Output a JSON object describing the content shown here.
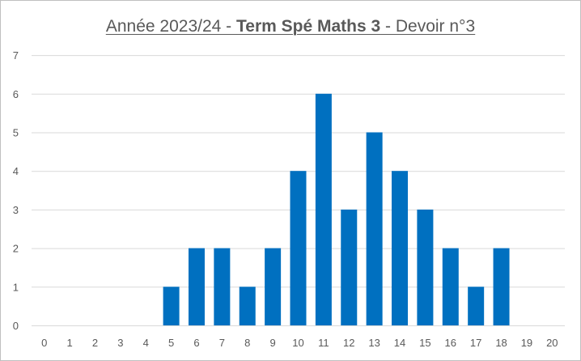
{
  "chart_data": {
    "type": "bar",
    "title": {
      "part1": "Année 2023/24 - ",
      "part2": "Term Spé Maths 3",
      "part3": " - Devoir n°3"
    },
    "categories": [
      "0",
      "1",
      "2",
      "3",
      "4",
      "5",
      "6",
      "7",
      "8",
      "9",
      "10",
      "11",
      "12",
      "13",
      "14",
      "15",
      "16",
      "17",
      "18",
      "19",
      "20"
    ],
    "values": [
      0,
      0,
      0,
      0,
      0,
      1,
      2,
      2,
      1,
      2,
      4,
      6,
      3,
      5,
      4,
      3,
      2,
      1,
      2,
      0,
      0
    ],
    "yticks": [
      "0",
      "1",
      "2",
      "3",
      "4",
      "5",
      "6",
      "7"
    ],
    "ylim": [
      0,
      7
    ],
    "grid": true,
    "bar_color": "#0070C0"
  }
}
